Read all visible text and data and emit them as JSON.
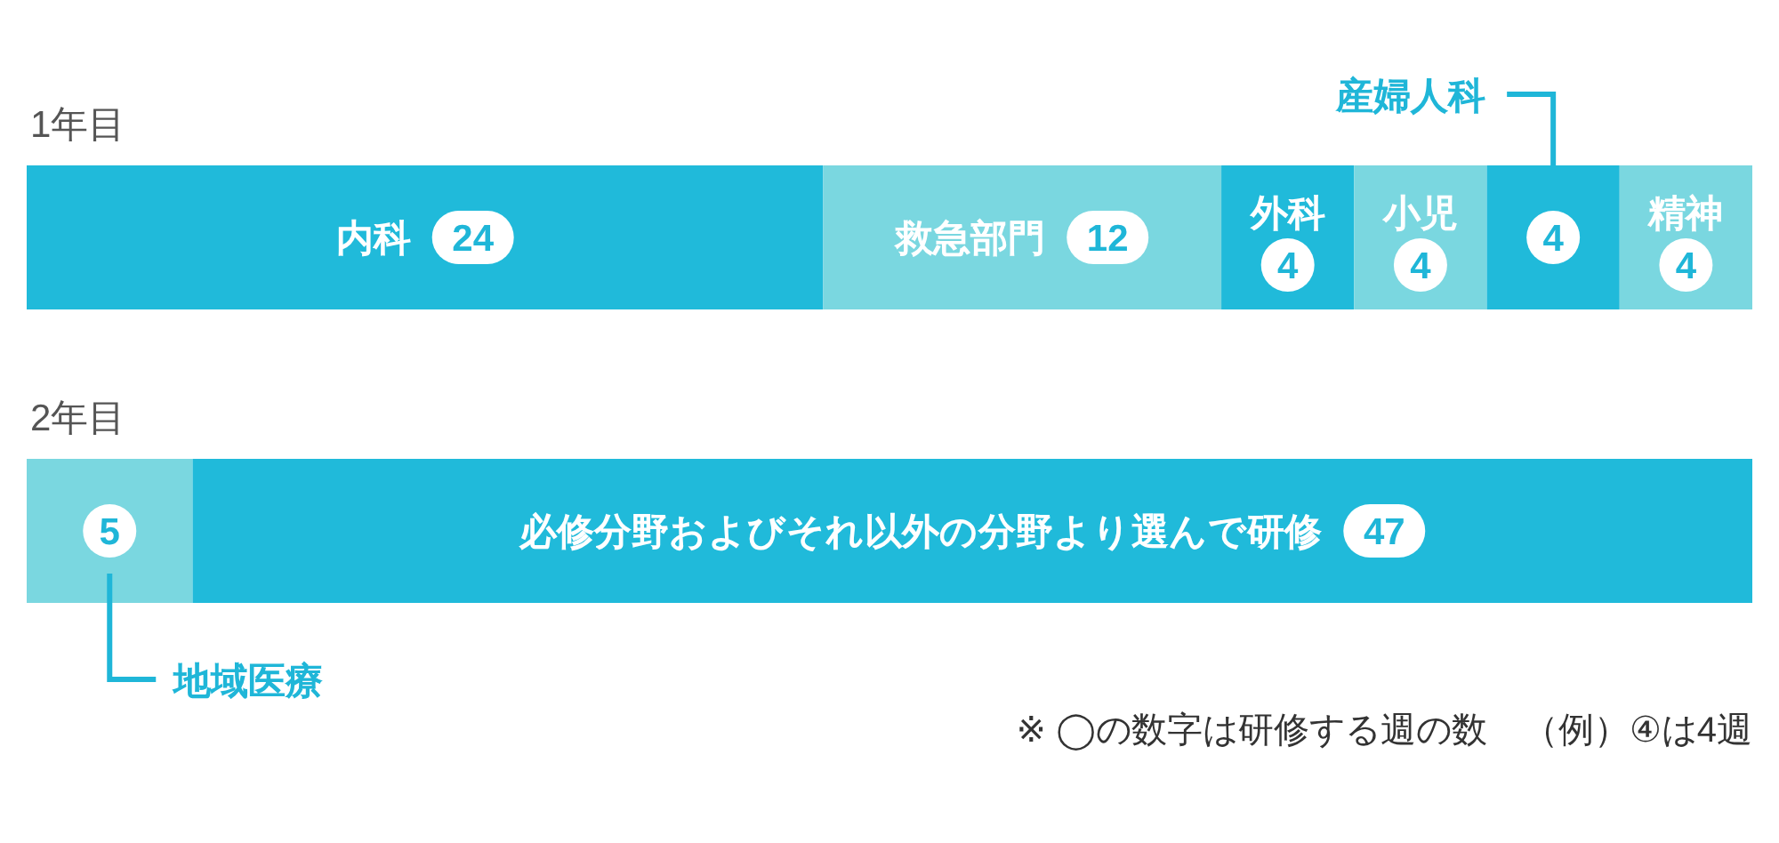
{
  "chart_data": {
    "type": "bar",
    "orientation": "horizontal",
    "stacked": true,
    "categories": [
      "1年目",
      "2年目"
    ],
    "series": [
      {
        "name": "内科",
        "color": "#20bada",
        "values": [
          24,
          null
        ]
      },
      {
        "name": "救急部門",
        "color": "#7ad7e0",
        "values": [
          12,
          null
        ]
      },
      {
        "name": "外科",
        "color": "#20bada",
        "values": [
          4,
          null
        ]
      },
      {
        "name": "小児",
        "color": "#7ad7e0",
        "values": [
          4,
          null
        ]
      },
      {
        "name": "産婦人科",
        "color": "#20bada",
        "values": [
          4,
          null
        ]
      },
      {
        "name": "精神",
        "color": "#7ad7e0",
        "values": [
          4,
          null
        ]
      },
      {
        "name": "地域医療",
        "color": "#7ad7e0",
        "values": [
          null,
          5
        ]
      },
      {
        "name": "必修分野およびそれ以外の分野より選んで研修",
        "color": "#20bada",
        "values": [
          null,
          47
        ]
      }
    ],
    "data_labels": true,
    "annotations": [
      "※ ◯の数字は研修する週の数　（例）④は4週"
    ]
  }
}
